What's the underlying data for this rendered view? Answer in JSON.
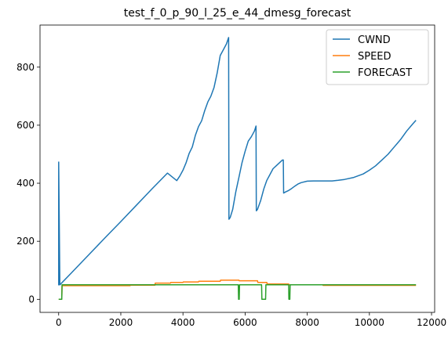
{
  "chart_data": {
    "type": "line",
    "title": "test_f_0_p_90_l_25_e_44_dmesg_forecast",
    "xlabel": "",
    "ylabel": "",
    "xlim": [
      -600,
      12100
    ],
    "ylim": [
      -45,
      945
    ],
    "xticks": [
      0,
      2000,
      4000,
      6000,
      8000,
      10000,
      12000
    ],
    "yticks": [
      0,
      200,
      400,
      600,
      800
    ],
    "grid": false,
    "legend_position": "top-right",
    "series": [
      {
        "name": "CWND",
        "color": "#1f77b4",
        "x": [
          0,
          0,
          40,
          400,
          1000,
          1500,
          2000,
          2500,
          3000,
          3500,
          3800,
          3900,
          4000,
          4100,
          4200,
          4300,
          4400,
          4500,
          4600,
          4700,
          4800,
          4900,
          5000,
          5100,
          5200,
          5300,
          5400,
          5470,
          5480,
          5520,
          5600,
          5700,
          5800,
          5900,
          6000,
          6100,
          6200,
          6300,
          6350,
          6360,
          6400,
          6500,
          6600,
          6700,
          6800,
          6900,
          7000,
          7100,
          7200,
          7230,
          7240,
          7300,
          7400,
          7500,
          7600,
          7700,
          7800,
          8000,
          8200,
          8500,
          8800,
          9000,
          9200,
          9500,
          9800,
          10000,
          10200,
          10400,
          10600,
          10800,
          11000,
          11200,
          11400,
          11500
        ],
        "y": [
          48,
          473,
          50,
          90,
          157,
          213,
          268,
          324,
          380,
          435,
          409,
          425,
          445,
          470,
          503,
          525,
          565,
          595,
          615,
          650,
          680,
          700,
          730,
          780,
          840,
          860,
          880,
          902,
          276,
          282,
          310,
          370,
          420,
          470,
          510,
          545,
          560,
          580,
          597,
          305,
          310,
          340,
          380,
          410,
          430,
          450,
          460,
          470,
          480,
          480,
          366,
          370,
          375,
          382,
          390,
          397,
          402,
          407,
          408,
          408,
          408,
          410,
          413,
          420,
          432,
          445,
          460,
          480,
          500,
          525,
          550,
          580,
          605,
          617
        ]
      },
      {
        "name": "SPEED",
        "color": "#ff7f0e",
        "x": [
          0,
          100,
          110,
          2300,
          2310,
          3100,
          3110,
          3600,
          3610,
          4000,
          4010,
          4500,
          4510,
          5200,
          5210,
          5800,
          5810,
          6400,
          6410,
          6700,
          6710,
          7400,
          7410,
          8500,
          8510,
          11500
        ],
        "y": [
          0,
          0,
          47,
          47,
          49,
          49,
          56,
          56,
          58,
          58,
          60,
          60,
          62,
          62,
          66,
          66,
          64,
          64,
          58,
          58,
          53,
          53,
          50,
          50,
          48,
          48
        ]
      },
      {
        "name": "FORECAST",
        "color": "#2ca02c",
        "x": [
          0,
          100,
          110,
          5780,
          5790,
          5810,
          5820,
          6530,
          6540,
          6660,
          6670,
          7400,
          7410,
          7440,
          7450,
          11500
        ],
        "y": [
          0,
          0,
          50,
          50,
          0,
          0,
          50,
          50,
          0,
          0,
          50,
          50,
          0,
          0,
          50,
          50
        ]
      }
    ]
  }
}
